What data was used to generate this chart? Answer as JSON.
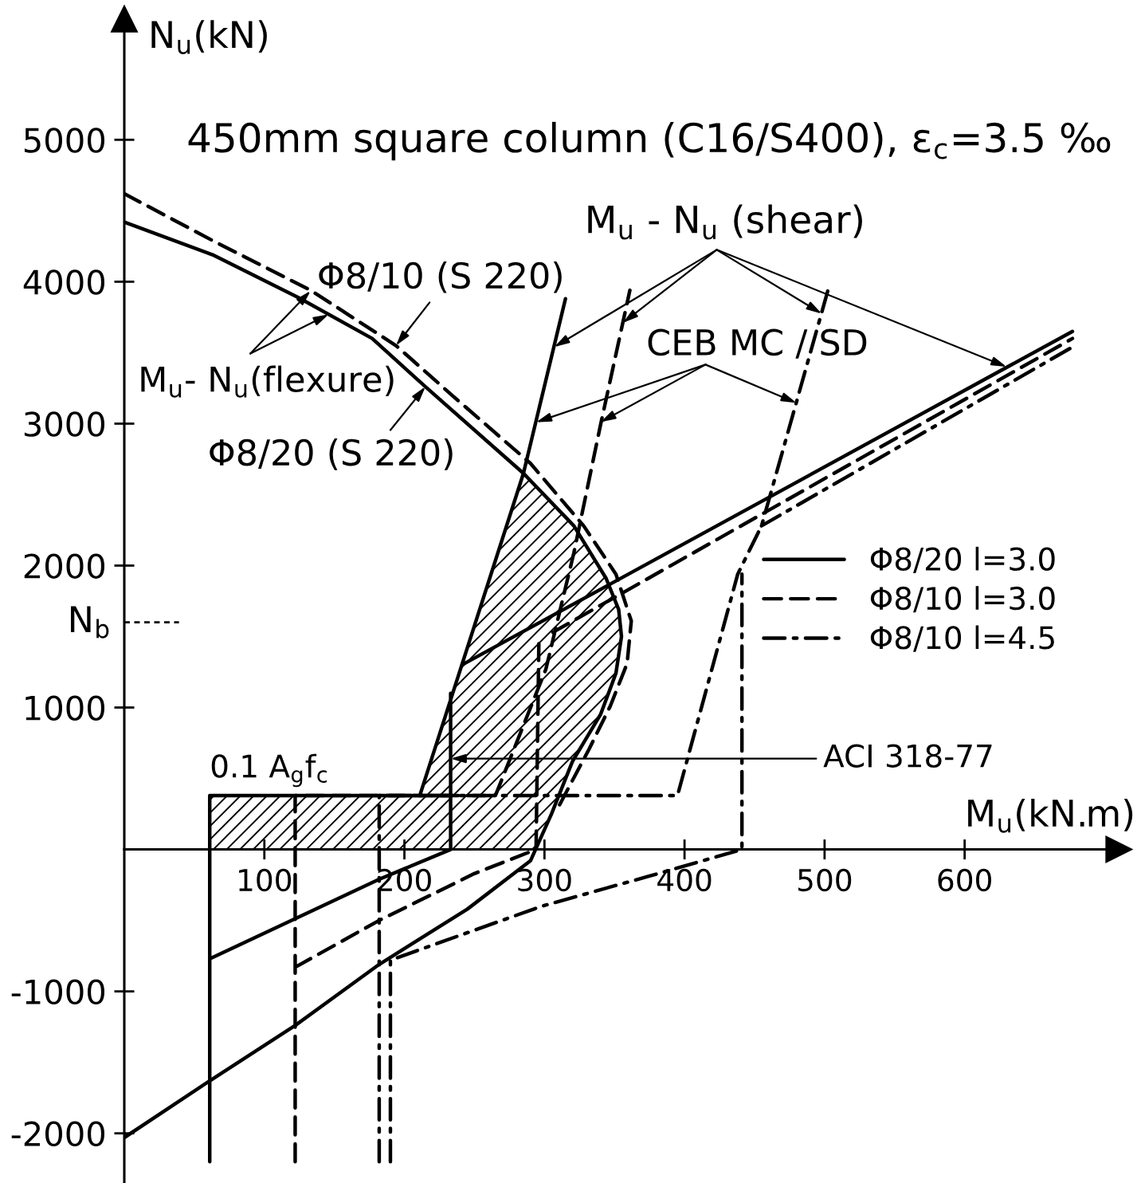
{
  "chart_data": {
    "type": "line",
    "title": "450mm square column (C16/S400), ε$_{c}$=3.5 ‰",
    "xlabel": "M$_{u}$(kN.m)",
    "ylabel": "N$_{u}$(kN)",
    "xlim": [
      0,
      710
    ],
    "ylim": [
      -2350,
      5850
    ],
    "xticks": [
      100,
      200,
      300,
      400,
      500,
      600
    ],
    "yticks": [
      -2000,
      -1000,
      1000,
      2000,
      3000,
      4000,
      5000
    ],
    "legend": "right",
    "ref_lines": [
      {
        "axis": "y",
        "value": 1600,
        "label": "N$_{b}$",
        "line_style": "dashed"
      }
    ],
    "annotations": [
      {
        "text": "M$_{u}$- N$_{u}$(flexure)",
        "x": 146,
        "y": 3770
      },
      {
        "text": "Φ8/10 (S 220)",
        "x": 194,
        "y": 3550
      },
      {
        "text": "Φ8/20 (S 220)",
        "x": 215,
        "y": 3260
      },
      {
        "text": "M$_{u}$ - N$_{u}$ (shear)",
        "x": 307,
        "y": 3540
      },
      {
        "text": "CEB MC / SD",
        "x": 294,
        "y": 3010
      },
      {
        "text": "ACI 318-77",
        "x": 233,
        "y": 640
      },
      "0.1 A$_{g}$f$_{c}$"
    ],
    "series": [
      {
        "type": "area",
        "color": "#000000",
        "x": [
          61,
          61,
          211,
          241,
          285,
          321,
          344,
          353,
          355,
          351,
          340,
          320,
          305,
          294,
          61
        ],
        "values": [
          0,
          380,
          380,
          1300,
          2650,
          2280,
          1910,
          1690,
          1500,
          1240,
          950,
          620,
          250,
          0,
          0
        ]
      },
      {
        "color": "#000000",
        "line_style": "solid",
        "x": [
          0,
          63,
          124,
          177,
          215,
          285,
          321,
          344,
          353,
          355,
          351,
          340,
          320,
          305,
          290,
          245,
          182,
          122,
          61,
          0
        ],
        "values": [
          4420,
          4190,
          3890,
          3600,
          3260,
          2650,
          2280,
          1910,
          1690,
          1500,
          1240,
          950,
          620,
          250,
          -80,
          -420,
          -810,
          -1240,
          -1630,
          -2030
        ]
      },
      {
        "color": "#000000",
        "line_style": "dashed",
        "x": [
          0,
          63,
          133,
          194,
          234,
          290,
          328,
          351,
          362,
          359,
          347,
          332,
          310
        ],
        "values": [
          4620,
          4290,
          3940,
          3550,
          3200,
          2720,
          2280,
          1940,
          1610,
          1310,
          1010,
          710,
          300
        ]
      },
      {
        "name": "Φ8/20 l=3.0",
        "color": "#000000",
        "line_style": "solid",
        "x": [
          61,
          61,
          233,
          null,
          233,
          233,
          null,
          61,
          182,
          233,
          null,
          211,
          241,
          285,
          315,
          null,
          241,
          347,
          677
        ],
        "values": [
          -2200,
          380,
          380,
          null,
          0,
          1100,
          null,
          -770,
          -210,
          0,
          null,
          380,
          1300,
          2650,
          3880,
          null,
          1300,
          1870,
          3650
        ]
      },
      {
        "name": "Φ8/10 l=3.0",
        "color": "#000000",
        "line_style": "dashed",
        "x": [
          122,
          122,
          265,
          301,
          321,
          340,
          361,
          null,
          122,
          182,
          250,
          294,
          296,
          null,
          306,
          677
        ],
        "values": [
          -2200,
          380,
          380,
          1270,
          2090,
          2990,
          3940,
          null,
          -830,
          -500,
          -170,
          0,
          1450,
          null,
          1530,
          3600
        ]
      },
      {
        "name": "Φ8/10 l=4.5",
        "color": "#000000",
        "line_style": "dashdot",
        "x": [
          182,
          182,
          395,
          438,
          455,
          503,
          null,
          190,
          190,
          298,
          374,
          441,
          441,
          null,
          455,
          677
        ],
        "values": [
          -2200,
          380,
          380,
          1940,
          2280,
          3960,
          null,
          -2200,
          -780,
          -400,
          -190,
          0,
          1940,
          null,
          2280,
          3540
        ]
      }
    ]
  }
}
